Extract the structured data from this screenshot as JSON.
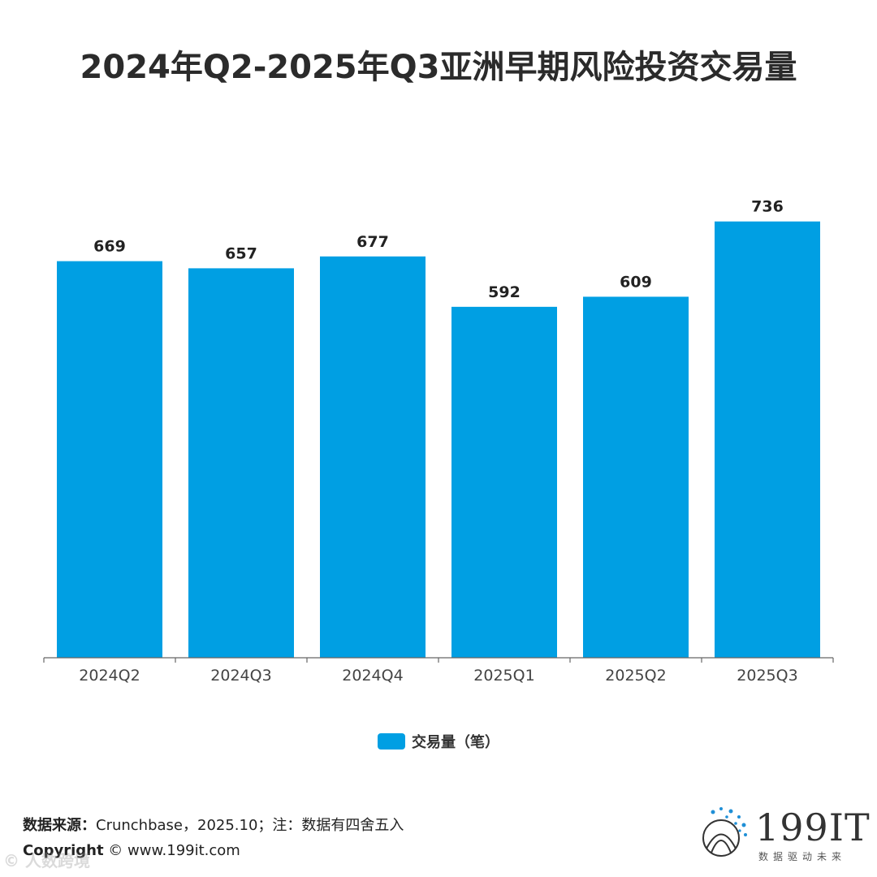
{
  "title": "2024年Q2-2025年Q3亚洲早期风险投资交易量",
  "chart_data": {
    "type": "bar",
    "categories": [
      "2024Q2",
      "2024Q3",
      "2024Q4",
      "2025Q1",
      "2025Q2",
      "2025Q3"
    ],
    "series": [
      {
        "name": "交易量（笔）",
        "values": [
          669,
          657,
          677,
          592,
          609,
          736
        ],
        "color": "#009fe3"
      }
    ],
    "ylim": [
      0,
      800
    ],
    "grid": false,
    "legend": "bottom-center",
    "data_labels": true
  },
  "legend": {
    "label": "交易量（笔）"
  },
  "source": {
    "label": "数据来源：",
    "text": "Crunchbase，2025.10；注：数据有四舍五入"
  },
  "copyright": {
    "label": "Copyright",
    "text": "© www.199it.com"
  },
  "logo": {
    "name": "199IT",
    "tagline": "数据驱动未来"
  },
  "watermark": {
    "text": "© 人数跨境"
  }
}
